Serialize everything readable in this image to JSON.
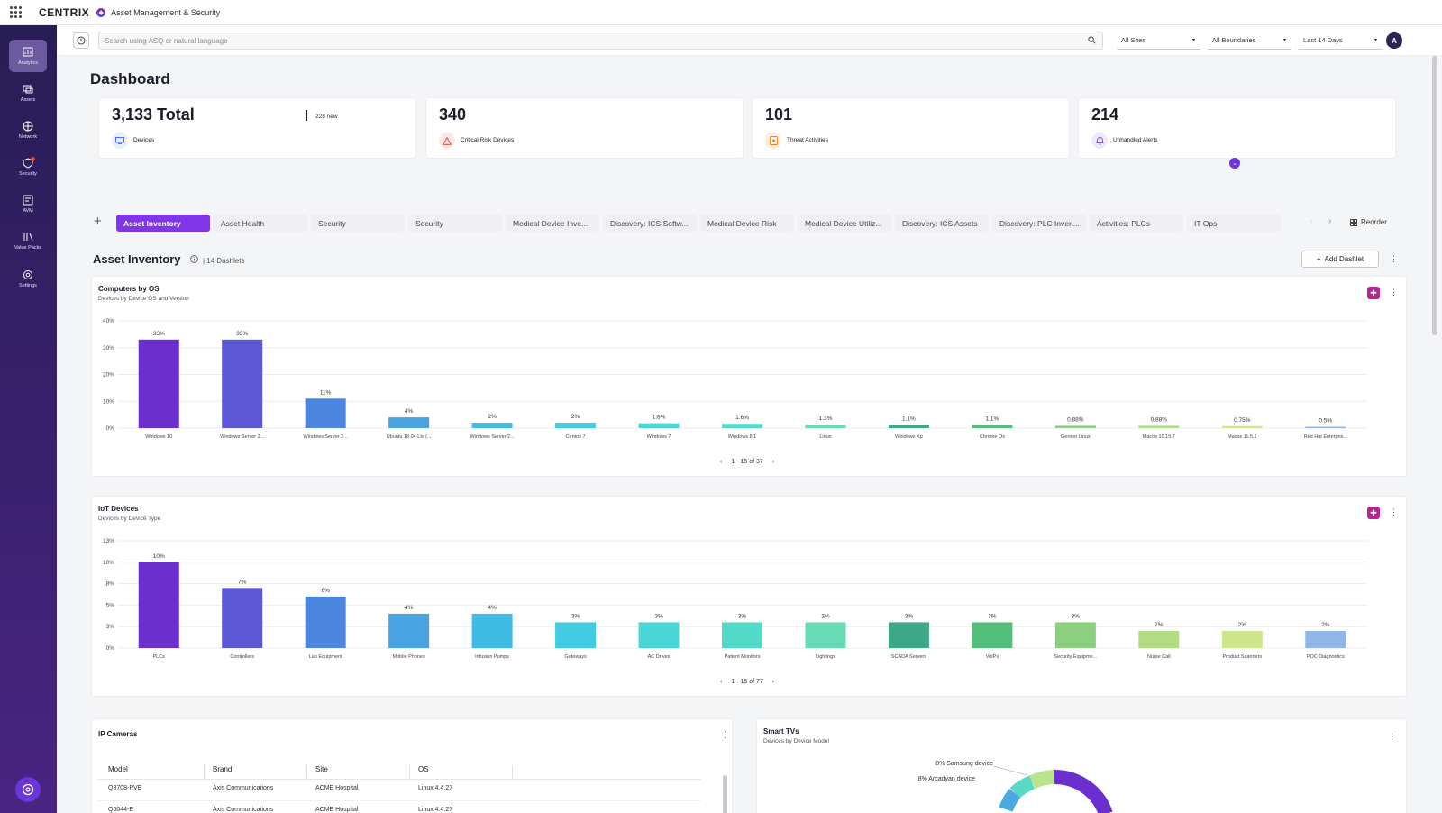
{
  "topbar": {
    "logo": "CENTRIX",
    "app_title": "Asset Management & Security"
  },
  "sidebar": {
    "items": [
      {
        "label": "Analytics",
        "icon": "analytics-icon",
        "active": true
      },
      {
        "label": "Assets",
        "icon": "assets-icon"
      },
      {
        "label": "Network",
        "icon": "network-icon"
      },
      {
        "label": "Security",
        "icon": "security-icon",
        "badge": true
      },
      {
        "label": "AVM",
        "icon": "avm-icon"
      },
      {
        "label": "Value Packs",
        "icon": "value-packs-icon"
      },
      {
        "label": "Settings",
        "icon": "settings-icon"
      }
    ]
  },
  "search": {
    "placeholder": "Search using ASQ or natural language"
  },
  "filters": {
    "sites": "All Sites",
    "boundaries": "All Boundaries",
    "range": "Last 14 Days"
  },
  "user": {
    "avatar": "A"
  },
  "page_title": "Dashboard",
  "kpis": [
    {
      "value": "3,133 Total",
      "sub": "228 new",
      "label": "Devices",
      "color": "#4a6cf7",
      "bg": "#e9eefc"
    },
    {
      "value": "340",
      "label": "Critical Risk Devices",
      "color": "#e0473b",
      "bg": "#fde8e6"
    },
    {
      "value": "101",
      "label": "Threat Activities",
      "color": "#f08a1f",
      "bg": "#fdf0e2"
    },
    {
      "value": "214",
      "label": "Unhandled Alerts",
      "color": "#7b55d9",
      "bg": "#efe9fb"
    }
  ],
  "tabs": [
    "Asset Inventory",
    "Asset Health",
    "Security",
    "Security",
    "Medical Device Inve...",
    "Discovery: ICS Softw...",
    "Medical Device Risk",
    "Medical Device Utiliz...",
    "Discovery: ICS Assets",
    "Discovery: PLC Inven...",
    "Activities: PLCs",
    "IT Ops"
  ],
  "reorder_label": "Reorder",
  "section": {
    "title": "Asset Inventory",
    "sub": "| 14 Dashlets",
    "add_label": "Add Dashlet"
  },
  "computers_card": {
    "title": "Computers by OS",
    "sub": "Devices by Device OS and Version",
    "pager": "1 - 15 of 37",
    "chart_data": {
      "type": "bar",
      "categories": [
        "Windows 10",
        "Windows Server 2...",
        "Windows Server 2...",
        "Ubuntu 18.04 Lts (...",
        "Windows Server 2...",
        "Centos 7",
        "Windows 7",
        "Windows 8.1",
        "Linux",
        "Windows Xp",
        "Chrome Os",
        "Gentoo Linux",
        "Macos 10.15.7",
        "Macos 11.5.1",
        "Red Hat Enterpris..."
      ],
      "values": [
        33,
        33,
        11,
        4,
        2,
        2,
        1.8,
        1.6,
        1.3,
        1.1,
        1.1,
        0.88,
        0.88,
        0.75,
        0.5
      ],
      "labels": [
        "33%",
        "33%",
        "11%",
        "4%",
        "2%",
        "2%",
        "1.8%",
        "1.6%",
        "1.3%",
        "1.1%",
        "1.1%",
        "0.88%",
        "0.88%",
        "0.75%",
        "0.5%"
      ],
      "yticks": [
        "0%",
        "10%",
        "20%",
        "30%",
        "40%"
      ],
      "ylim": [
        0,
        40
      ],
      "colors": [
        "#6b2fd0",
        "#5c57d4",
        "#4d86de",
        "#48a3e0",
        "#3fbbe6",
        "#40cce2",
        "#48d7d6",
        "#52dbc8",
        "#66dbb6",
        "#3da888",
        "#54be7c",
        "#8bd07e",
        "#b2dd84",
        "#cfe58b",
        "#92b6ea"
      ]
    }
  },
  "iot_card": {
    "title": "IoT Devices",
    "sub": "Devices by Device Type",
    "pager": "1 - 15 of 77",
    "chart_data": {
      "type": "bar",
      "categories": [
        "PLCs",
        "Controllers",
        "Lab Equipment",
        "Mobile Phones",
        "Infusion Pumps",
        "Gateways",
        "AC Drives",
        "Patient Monitors",
        "Lightings",
        "SCADA Servers",
        "VoIPs",
        "Security Equipme...",
        "Nurse Call",
        "Product Scanners",
        "POC Diagnostics"
      ],
      "values": [
        10,
        7,
        6,
        4,
        4,
        3,
        3,
        3,
        3,
        3,
        3,
        3,
        2,
        2,
        2
      ],
      "labels": [
        "10%",
        "7%",
        "6%",
        "4%",
        "4%",
        "3%",
        "3%",
        "3%",
        "3%",
        "3%",
        "3%",
        "3%",
        "2%",
        "2%",
        "2%"
      ],
      "yticks": [
        "0%",
        "3%",
        "5%",
        "8%",
        "10%",
        "13%"
      ],
      "ylim": [
        0,
        12.5
      ],
      "colors": [
        "#6b2fd0",
        "#5c57d4",
        "#4d86de",
        "#48a3e0",
        "#3fbbe6",
        "#40cce2",
        "#48d7d6",
        "#52dbc8",
        "#66dbb6",
        "#3da888",
        "#54be7c",
        "#8bd07e",
        "#b2dd84",
        "#cfe58b",
        "#92b6ea"
      ]
    }
  },
  "cameras_card": {
    "title": "IP Cameras",
    "columns": [
      "Model",
      "Brand",
      "Site",
      "OS"
    ],
    "rows": [
      [
        "Q3708-PVE",
        "Axis Communications",
        "ACME Hospital",
        "Linux 4.4.27"
      ],
      [
        "Q6044-E",
        "Axis Communications",
        "ACME Hospital",
        "Linux 4.4.27"
      ]
    ]
  },
  "tv_card": {
    "title": "Smart TVs",
    "sub": "Devices by Device Model",
    "labels": [
      "8% Samsung device",
      "8% Arcadyan device"
    ]
  }
}
